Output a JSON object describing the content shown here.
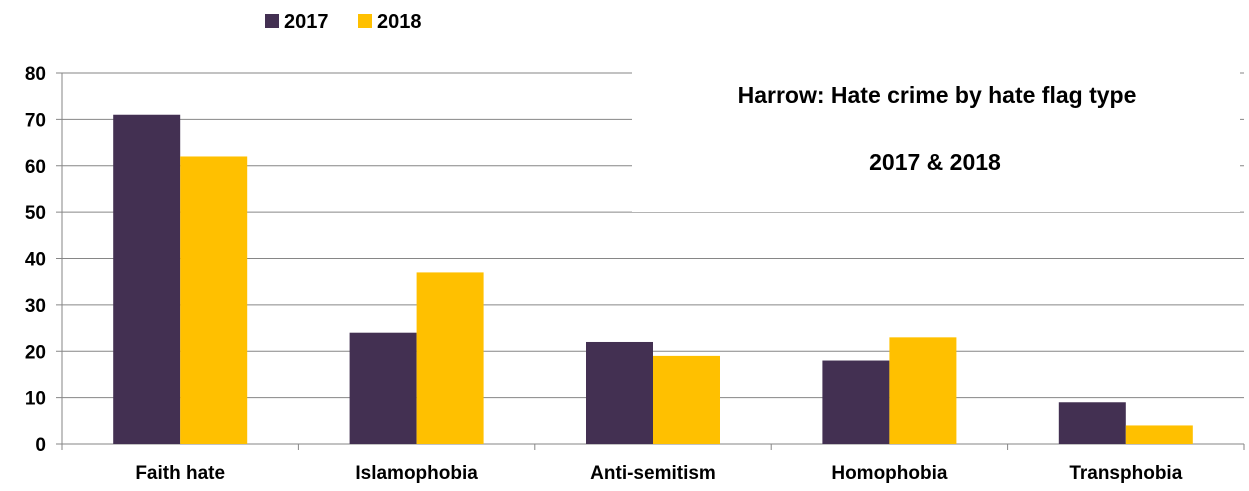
{
  "chart_data": {
    "type": "bar",
    "title": "Harrow: Hate crime by hate flag type",
    "subtitle": "2017 & 2018",
    "xlabel": "",
    "ylabel": "",
    "categories": [
      "Faith hate",
      "Islamophobia",
      "Anti-semitism",
      "Homophobia",
      "Transphobia"
    ],
    "series": [
      {
        "name": "2017",
        "values": [
          71,
          24,
          22,
          18,
          9
        ],
        "color": "#433052"
      },
      {
        "name": "2018",
        "values": [
          62,
          37,
          19,
          23,
          4
        ],
        "color": "#FFC000"
      }
    ],
    "ylim": [
      0,
      80
    ],
    "yticks": [
      0,
      10,
      20,
      30,
      40,
      50,
      60,
      70,
      80
    ],
    "grid": true,
    "legend_position": "top-left"
  }
}
